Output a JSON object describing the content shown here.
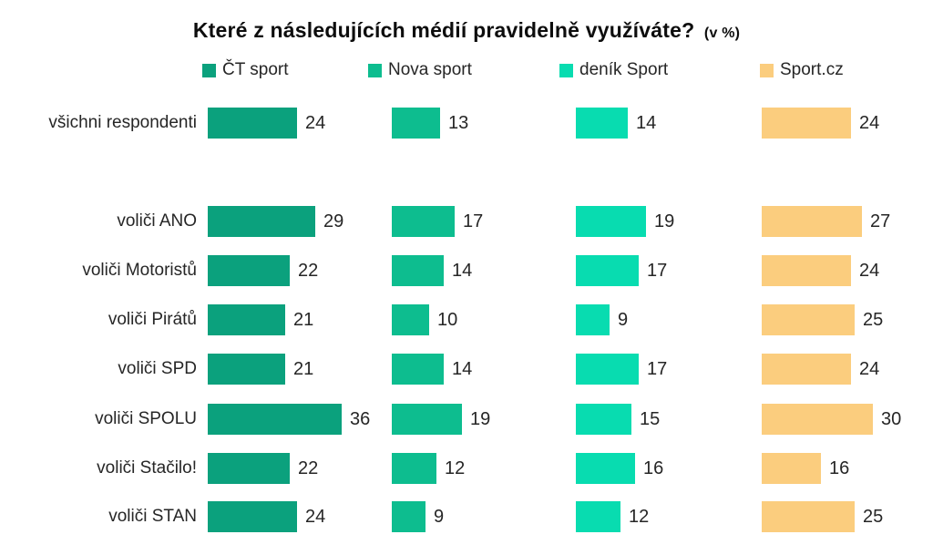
{
  "title": {
    "text": "Které z následujících médií pravidelně využíváte?",
    "suffix": "(v %)"
  },
  "chart_data": {
    "type": "bar",
    "orientation": "horizontal",
    "unit": "%",
    "title": "Které z následujících médií pravidelně využíváte? (v %)",
    "legend_position": "top",
    "grid": false,
    "value_labels": true,
    "axis_hidden": true,
    "xlim": [
      0,
      40
    ],
    "categories": [
      "všichni respondenti",
      "voliči ANO",
      "voliči Motoristů",
      "voliči Pirátů",
      "voliči SPD",
      "voliči SPOLU",
      "voliči Stačilo!",
      "voliči STAN"
    ],
    "series": [
      {
        "name": "ČT sport",
        "color": "#0ba17d",
        "values": [
          24,
          29,
          22,
          21,
          21,
          36,
          22,
          24
        ]
      },
      {
        "name": "Nova sport",
        "color": "#0dbd8f",
        "values": [
          13,
          17,
          14,
          10,
          14,
          19,
          12,
          9
        ]
      },
      {
        "name": "deník Sport",
        "color": "#08dcb0",
        "values": [
          14,
          19,
          17,
          9,
          17,
          15,
          16,
          12
        ]
      },
      {
        "name": "Sport.cz",
        "color": "#fbcd7e",
        "values": [
          24,
          27,
          24,
          25,
          24,
          30,
          16,
          25
        ]
      }
    ]
  }
}
